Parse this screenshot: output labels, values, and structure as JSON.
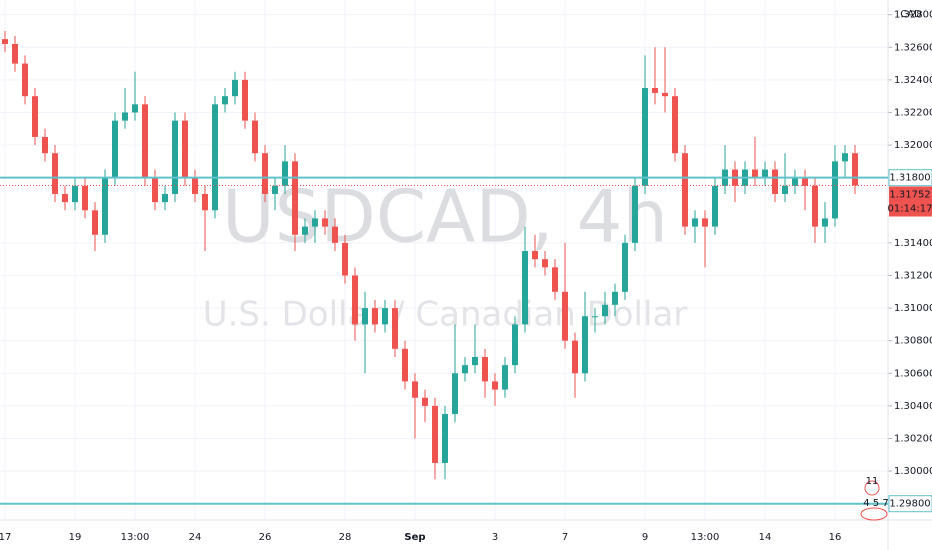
{
  "chart_data": {
    "type": "candlestick",
    "title": "USDCAD, 4h",
    "subtitle": "U.S. Dollar / Canadian Dollar",
    "currency": "CAD",
    "categories": [
      "17",
      null,
      null,
      null,
      null,
      null,
      null,
      "19",
      null,
      null,
      null,
      null,
      null,
      "13:00",
      null,
      null,
      null,
      null,
      null,
      "24",
      null,
      null,
      null,
      null,
      null,
      null,
      "26",
      null,
      null,
      null,
      null,
      null,
      null,
      null,
      "28",
      null,
      null,
      null,
      null,
      null,
      null,
      "Sep",
      null,
      null,
      null,
      null,
      null,
      null,
      null,
      "3",
      null,
      null,
      null,
      null,
      null,
      null,
      "7",
      null,
      null,
      null,
      null,
      null,
      null,
      null,
      "9",
      null,
      null,
      null,
      null,
      null,
      "13:00",
      null,
      null,
      null,
      null,
      null,
      "14",
      null,
      null,
      null,
      null,
      null,
      null,
      "16",
      null,
      null
    ],
    "open": [
      1.3265,
      1.3262,
      1.325,
      1.323,
      1.3205,
      1.3195,
      1.317,
      1.3165,
      1.3175,
      1.316,
      1.3145,
      1.318,
      1.3215,
      1.322,
      1.3225,
      1.318,
      1.3165,
      1.317,
      1.3215,
      1.318,
      1.317,
      1.316,
      1.3225,
      1.323,
      1.324,
      1.3215,
      1.3195,
      1.317,
      1.3175,
      1.319,
      1.3145,
      1.315,
      1.3155,
      1.315,
      1.314,
      1.312,
      1.309,
      1.31,
      1.309,
      1.31,
      1.3075,
      1.3055,
      1.3045,
      1.304,
      1.3005,
      1.3035,
      1.306,
      1.3065,
      1.307,
      1.3055,
      1.305,
      1.3065,
      1.309,
      1.3135,
      1.313,
      1.3125,
      1.311,
      1.308,
      1.306,
      1.3095,
      1.3095,
      1.3102,
      1.311,
      1.314,
      1.3175,
      1.3235,
      1.3232,
      1.323,
      1.3195,
      1.315,
      1.3155,
      1.315,
      1.3175,
      1.3185,
      1.3175,
      1.3185,
      1.318,
      1.3185,
      1.317,
      1.3175,
      1.318,
      1.3175,
      1.315,
      1.3155,
      1.319,
      1.3195
    ],
    "high": [
      1.327,
      1.3267,
      1.3255,
      1.3235,
      1.321,
      1.32,
      1.3175,
      1.318,
      1.318,
      1.3165,
      1.3185,
      1.322,
      1.3235,
      1.3245,
      1.323,
      1.3185,
      1.3175,
      1.322,
      1.322,
      1.3185,
      1.3175,
      1.323,
      1.3235,
      1.3245,
      1.3245,
      1.322,
      1.32,
      1.318,
      1.32,
      1.3195,
      1.3155,
      1.316,
      1.316,
      1.3155,
      1.3145,
      1.3125,
      1.311,
      1.3105,
      1.3105,
      1.3105,
      1.308,
      1.306,
      1.305,
      1.3045,
      1.304,
      1.309,
      1.307,
      1.309,
      1.3075,
      1.306,
      1.307,
      1.3095,
      1.315,
      1.3145,
      1.3135,
      1.313,
      1.314,
      1.3085,
      1.311,
      1.31,
      1.311,
      1.3115,
      1.3145,
      1.318,
      1.3255,
      1.326,
      1.326,
      1.3235,
      1.32,
      1.316,
      1.316,
      1.318,
      1.32,
      1.319,
      1.319,
      1.3205,
      1.319,
      1.319,
      1.3195,
      1.3185,
      1.3185,
      1.318,
      1.3165,
      1.32,
      1.32,
      1.32
    ],
    "low": [
      1.3257,
      1.3245,
      1.3225,
      1.32,
      1.319,
      1.3165,
      1.316,
      1.316,
      1.3155,
      1.3135,
      1.314,
      1.3175,
      1.321,
      1.3215,
      1.3175,
      1.316,
      1.316,
      1.3165,
      1.3175,
      1.3165,
      1.3135,
      1.3155,
      1.322,
      1.3225,
      1.321,
      1.319,
      1.3165,
      1.316,
      1.317,
      1.3135,
      1.314,
      1.314,
      1.3145,
      1.3135,
      1.3115,
      1.308,
      1.306,
      1.3085,
      1.3085,
      1.307,
      1.305,
      1.302,
      1.303,
      1.2995,
      1.2995,
      1.303,
      1.3055,
      1.306,
      1.3045,
      1.304,
      1.3045,
      1.306,
      1.3085,
      1.3125,
      1.312,
      1.3105,
      1.3075,
      1.3045,
      1.3055,
      1.3085,
      1.309,
      1.3095,
      1.3105,
      1.3135,
      1.317,
      1.3225,
      1.322,
      1.319,
      1.3145,
      1.314,
      1.3125,
      1.3145,
      1.317,
      1.3165,
      1.317,
      1.3175,
      1.3175,
      1.3165,
      1.3165,
      1.317,
      1.316,
      1.314,
      1.314,
      1.315,
      1.318,
      1.317
    ],
    "close": [
      1.3262,
      1.325,
      1.323,
      1.3205,
      1.3195,
      1.317,
      1.3165,
      1.3175,
      1.316,
      1.3145,
      1.318,
      1.3215,
      1.322,
      1.3225,
      1.318,
      1.3165,
      1.317,
      1.3215,
      1.318,
      1.317,
      1.316,
      1.3225,
      1.323,
      1.324,
      1.3215,
      1.3195,
      1.317,
      1.3175,
      1.319,
      1.3145,
      1.315,
      1.3155,
      1.315,
      1.314,
      1.312,
      1.309,
      1.31,
      1.309,
      1.31,
      1.3075,
      1.3055,
      1.3045,
      1.304,
      1.3005,
      1.3035,
      1.306,
      1.3065,
      1.307,
      1.3055,
      1.305,
      1.3065,
      1.309,
      1.3135,
      1.313,
      1.3125,
      1.311,
      1.308,
      1.306,
      1.3095,
      1.3095,
      1.3102,
      1.311,
      1.314,
      1.3175,
      1.3235,
      1.3232,
      1.323,
      1.3195,
      1.315,
      1.3155,
      1.315,
      1.3175,
      1.3185,
      1.3175,
      1.3185,
      1.318,
      1.3185,
      1.317,
      1.3175,
      1.318,
      1.3175,
      1.315,
      1.3155,
      1.319,
      1.3195,
      1.31752
    ],
    "up_color": "#26a69a",
    "down_color": "#ef5350",
    "ylim": [
      1.297,
      1.3289
    ],
    "yticks": [
      {
        "value": 1.328,
        "label": "1.32800"
      },
      {
        "value": 1.326,
        "label": "1.32600"
      },
      {
        "value": 1.324,
        "label": "1.32400"
      },
      {
        "value": 1.322,
        "label": "1.32200"
      },
      {
        "value": 1.32,
        "label": "1.32000"
      },
      {
        "value": 1.314,
        "label": "1.31400"
      },
      {
        "value": 1.312,
        "label": "1.31200"
      },
      {
        "value": 1.31,
        "label": "1.31000"
      },
      {
        "value": 1.308,
        "label": "1.30800"
      },
      {
        "value": 1.306,
        "label": "1.30600"
      },
      {
        "value": 1.304,
        "label": "1.30400"
      },
      {
        "value": 1.302,
        "label": "1.30200"
      },
      {
        "value": 1.3,
        "label": "1.30000"
      }
    ],
    "levels": [
      {
        "value": 1.318,
        "label": "1.31800"
      },
      {
        "value": 1.298,
        "label": "1.29800"
      }
    ],
    "level_color": "#5fc3cc",
    "last_price_label": "1.31752",
    "countdown": "01:14:17",
    "indicators": [
      "11",
      "4 5 7"
    ],
    "grid": true
  }
}
